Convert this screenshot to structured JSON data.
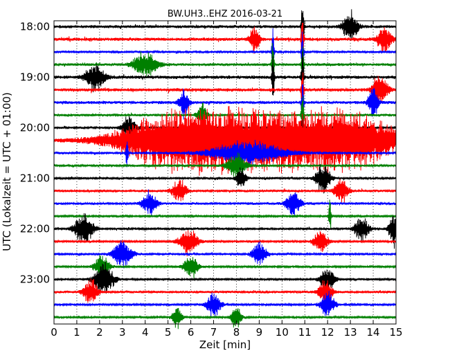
{
  "chart_data": {
    "type": "line",
    "subtype": "seismogram-dayplot",
    "title": "BW.UH3..EHZ 2016-03-21",
    "xlabel": "Zeit  [min]",
    "ylabel": "UTC (Lokalzeit = UTC + 01:00)",
    "xlim": [
      0,
      15
    ],
    "x_ticks": [
      "0",
      "1",
      "2",
      "3",
      "4",
      "5",
      "6",
      "7",
      "8",
      "9",
      "10",
      "11",
      "12",
      "13",
      "14",
      "15"
    ],
    "y_ticks": [
      "18:00",
      "19:00",
      "20:00",
      "21:00",
      "22:00",
      "23:00"
    ],
    "grid": "vertical dotted",
    "colors": [
      "#000000",
      "#ff0000",
      "#0000ff",
      "#008000"
    ],
    "rows": [
      {
        "start": "18:00",
        "amp": 0.5,
        "events": [
          [
            13.0,
            1.6,
            0.3
          ],
          [
            10.9,
            3.5,
            0.05
          ]
        ]
      },
      {
        "start": "18:15",
        "amp": 0.55,
        "events": [
          [
            8.8,
            1.4,
            0.2
          ],
          [
            14.5,
            1.4,
            0.3
          ],
          [
            10.9,
            3.5,
            0.05
          ]
        ]
      },
      {
        "start": "18:30",
        "amp": 0.35,
        "events": [
          [
            9.6,
            3.0,
            0.05
          ],
          [
            10.9,
            3.0,
            0.05
          ]
        ]
      },
      {
        "start": "18:45",
        "amp": 0.45,
        "events": [
          [
            4.0,
            1.3,
            0.5
          ],
          [
            9.6,
            3.0,
            0.05
          ],
          [
            10.9,
            3.0,
            0.05
          ]
        ]
      },
      {
        "start": "19:00",
        "amp": 0.55,
        "events": [
          [
            1.8,
            1.4,
            0.4
          ],
          [
            9.6,
            3.0,
            0.05
          ],
          [
            10.9,
            3.0,
            0.05
          ]
        ]
      },
      {
        "start": "19:15",
        "amp": 0.55,
        "events": [
          [
            14.3,
            1.8,
            0.3
          ],
          [
            10.9,
            3.0,
            0.05
          ]
        ]
      },
      {
        "start": "19:30",
        "amp": 0.5,
        "events": [
          [
            5.7,
            1.5,
            0.2
          ],
          [
            14.0,
            1.8,
            0.2
          ],
          [
            10.9,
            2.5,
            0.05
          ]
        ]
      },
      {
        "start": "19:45",
        "amp": 0.4,
        "events": [
          [
            6.5,
            1.3,
            0.2
          ],
          [
            10.9,
            2.5,
            0.05
          ]
        ]
      },
      {
        "start": "20:00",
        "amp": 0.35,
        "events": [
          [
            3.3,
            1.2,
            0.3
          ],
          [
            10.9,
            2.0,
            0.05
          ]
        ]
      },
      {
        "start": "20:15",
        "amp": 0.4,
        "events": [
          [
            9.0,
            3.2,
            5.6
          ]
        ]
      },
      {
        "start": "20:30",
        "amp": 0.4,
        "events": [
          [
            3.2,
            1.8,
            0.05
          ],
          [
            8.5,
            1.3,
            1.5
          ]
        ]
      },
      {
        "start": "20:45",
        "amp": 0.35,
        "events": [
          [
            8.0,
            1.2,
            0.4
          ]
        ]
      },
      {
        "start": "21:00",
        "amp": 0.35,
        "events": [
          [
            11.8,
            1.6,
            0.3
          ],
          [
            8.2,
            1.2,
            0.2
          ]
        ]
      },
      {
        "start": "21:15",
        "amp": 0.4,
        "events": [
          [
            12.6,
            1.2,
            0.3
          ],
          [
            5.5,
            1.2,
            0.3
          ]
        ]
      },
      {
        "start": "21:30",
        "amp": 0.4,
        "events": [
          [
            4.2,
            1.3,
            0.3
          ],
          [
            10.5,
            1.3,
            0.3
          ]
        ]
      },
      {
        "start": "21:45",
        "amp": 0.3,
        "events": [
          [
            12.1,
            1.8,
            0.05
          ]
        ]
      },
      {
        "start": "22:00",
        "amp": 0.35,
        "events": [
          [
            1.3,
            1.6,
            0.4
          ],
          [
            14.9,
            1.8,
            0.2
          ],
          [
            13.5,
            1.3,
            0.3
          ]
        ]
      },
      {
        "start": "22:15",
        "amp": 0.3,
        "events": [
          [
            5.9,
            1.4,
            0.4
          ],
          [
            11.7,
            1.2,
            0.3
          ]
        ]
      },
      {
        "start": "22:30",
        "amp": 0.35,
        "events": [
          [
            3.0,
            1.4,
            0.4
          ],
          [
            9.0,
            1.3,
            0.3
          ]
        ]
      },
      {
        "start": "22:45",
        "amp": 0.3,
        "events": [
          [
            2.1,
            1.3,
            0.3
          ],
          [
            6.0,
            1.2,
            0.3
          ]
        ]
      },
      {
        "start": "23:00",
        "amp": 0.35,
        "events": [
          [
            2.2,
            1.7,
            0.4
          ],
          [
            12.0,
            1.3,
            0.3
          ]
        ]
      },
      {
        "start": "23:15",
        "amp": 0.4,
        "events": [
          [
            1.6,
            1.3,
            0.3
          ],
          [
            11.9,
            1.3,
            0.3
          ]
        ]
      },
      {
        "start": "23:30",
        "amp": 0.3,
        "events": [
          [
            7.0,
            1.3,
            0.3
          ],
          [
            12.0,
            1.3,
            0.3
          ]
        ]
      },
      {
        "start": "23:45",
        "amp": 0.3,
        "events": [
          [
            8.0,
            1.4,
            0.2
          ],
          [
            5.4,
            1.2,
            0.2
          ]
        ]
      }
    ]
  }
}
